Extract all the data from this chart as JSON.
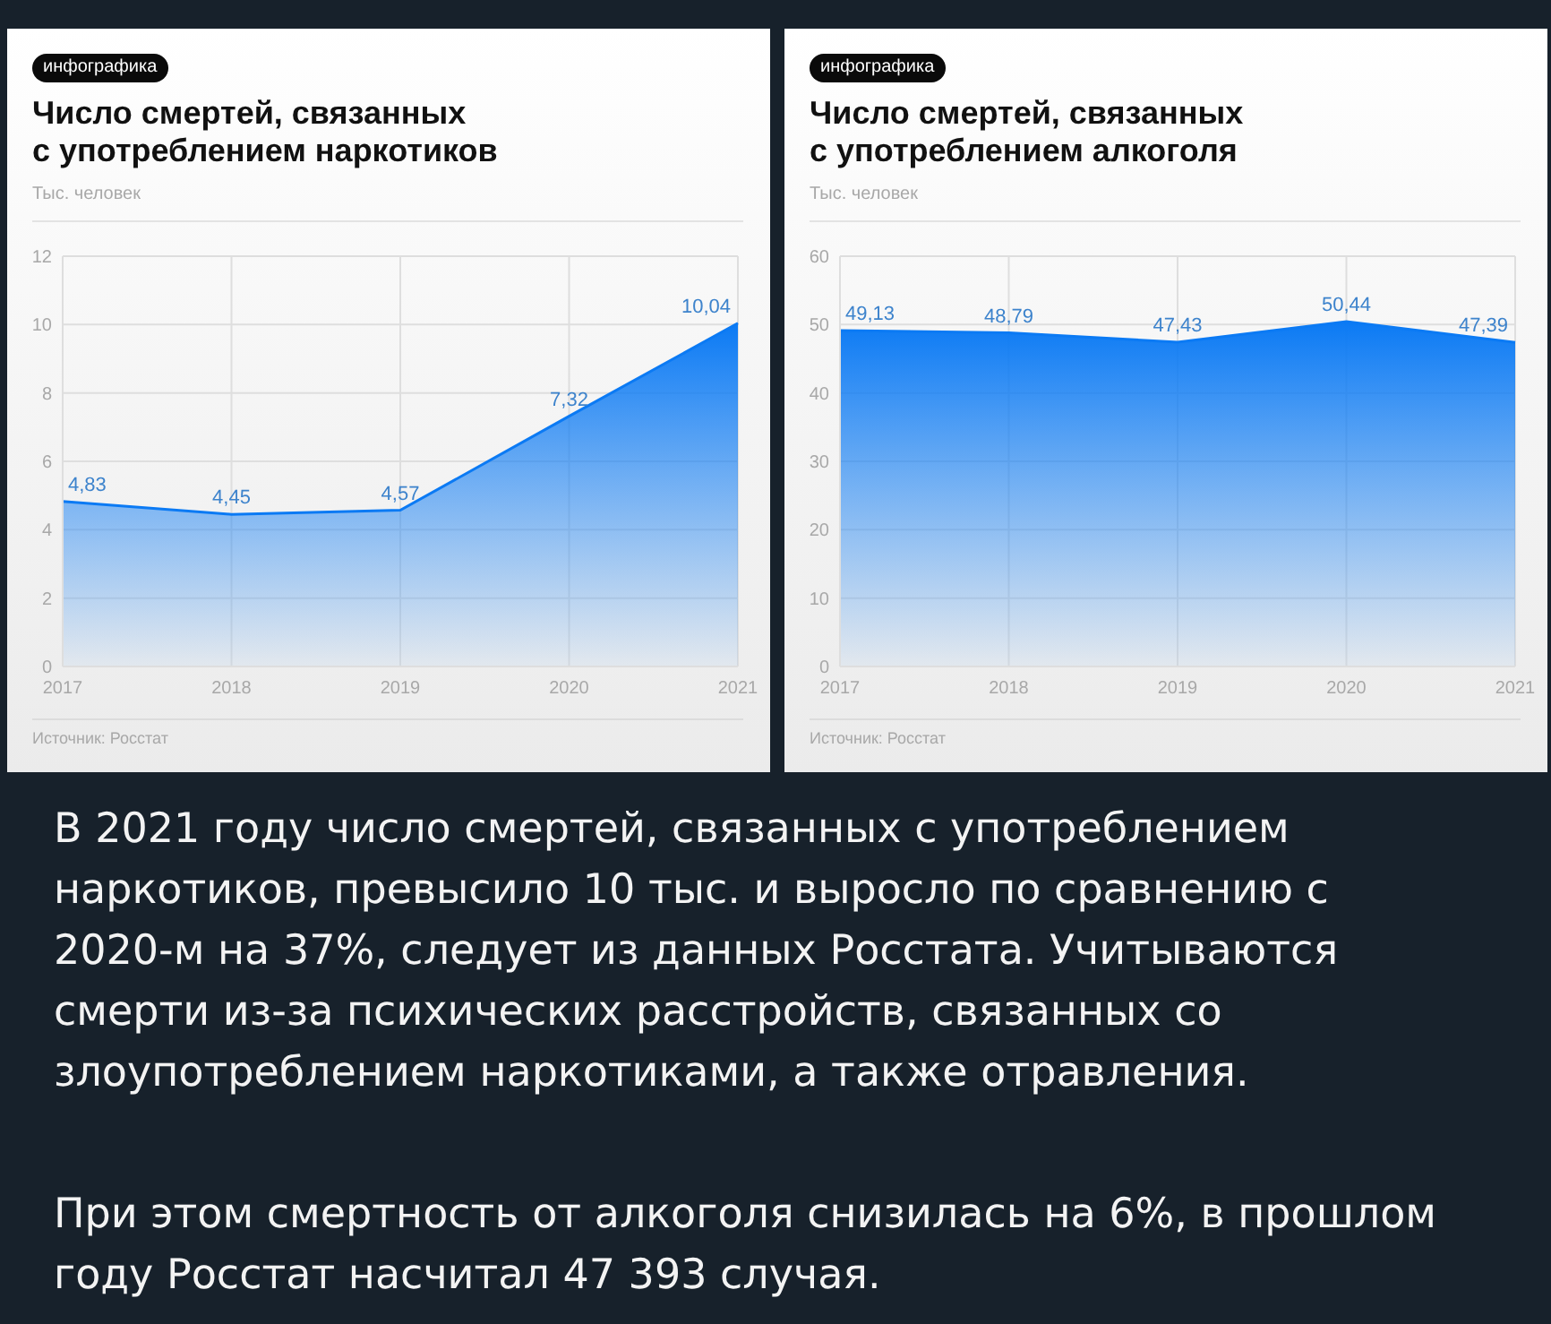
{
  "chart_data": [
    {
      "type": "area",
      "title": "Число смертей, связанных\nс употреблением наркотиков",
      "ylabel": "Тыс. человек",
      "annotations": [
        "инфографика",
        "Источник: Росстат"
      ],
      "categories": [
        "2017",
        "2018",
        "2019",
        "2020",
        "2021"
      ],
      "values": [
        4.83,
        4.45,
        4.57,
        7.32,
        10.04
      ],
      "value_labels": [
        "4,83",
        "4,45",
        "4,57",
        "7,32",
        "10,04"
      ],
      "color": "#0b7af4",
      "ylim": [
        0,
        12
      ],
      "yticks": [
        0,
        2,
        4,
        6,
        8,
        10,
        12
      ],
      "grid": true
    },
    {
      "type": "area",
      "title": "Число смертей, связанных\nс употреблением алкоголя",
      "ylabel": "Тыс. человек",
      "annotations": [
        "инфографика",
        "Источник: Росстат"
      ],
      "categories": [
        "2017",
        "2018",
        "2019",
        "2020",
        "2021"
      ],
      "values": [
        49.13,
        48.79,
        47.43,
        50.44,
        47.39
      ],
      "value_labels": [
        "49,13",
        "48,79",
        "47,43",
        "50,44",
        "47,39"
      ],
      "color": "#0b7af4",
      "ylim": [
        0,
        60
      ],
      "yticks": [
        0,
        10,
        20,
        30,
        40,
        50,
        60
      ],
      "grid": true
    },
    {
      "type": "other",
      "annotations": [
        "В 2021 году число смертей, связанных с употреблением наркотиков, превысило 10 тыс. и выросло по сравнению с 2020-м на 37%, следует из данных Росстата. Учитываются смерти из-за психических расстройств, связанных со злоупотреблением наркотиками, а также отравления.",
        "При этом смертность от алкоголя снизилась на 6%, в прошлом году Росстат насчитал 47 393 случая."
      ]
    }
  ]
}
